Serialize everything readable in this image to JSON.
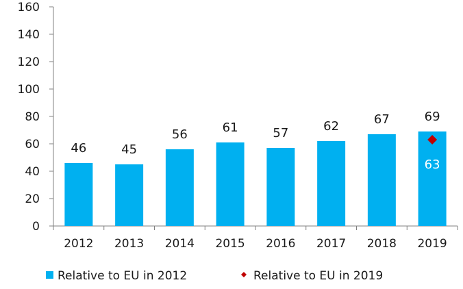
{
  "chart_data": {
    "type": "bar",
    "categories": [
      "2012",
      "2013",
      "2014",
      "2015",
      "2016",
      "2017",
      "2018",
      "2019"
    ],
    "series": [
      {
        "name": "Relative to EU in 2012",
        "type": "bar",
        "color": "#00b0f0",
        "values": [
          46,
          45,
          56,
          61,
          57,
          62,
          67,
          69
        ],
        "labels": [
          "46",
          "45",
          "56",
          "61",
          "57",
          "62",
          "67",
          "69"
        ]
      },
      {
        "name": "Relative to EU in 2019",
        "type": "scatter",
        "marker": "diamond",
        "color": "#c00000",
        "category": "2019",
        "value": 63,
        "label": "63"
      }
    ],
    "ylim": [
      0,
      160
    ],
    "yticks": [
      "0",
      "20",
      "40",
      "60",
      "80",
      "100",
      "120",
      "140",
      "160"
    ],
    "grid": false,
    "legend": "bottom",
    "title": "",
    "xlabel": "",
    "ylabel": ""
  }
}
